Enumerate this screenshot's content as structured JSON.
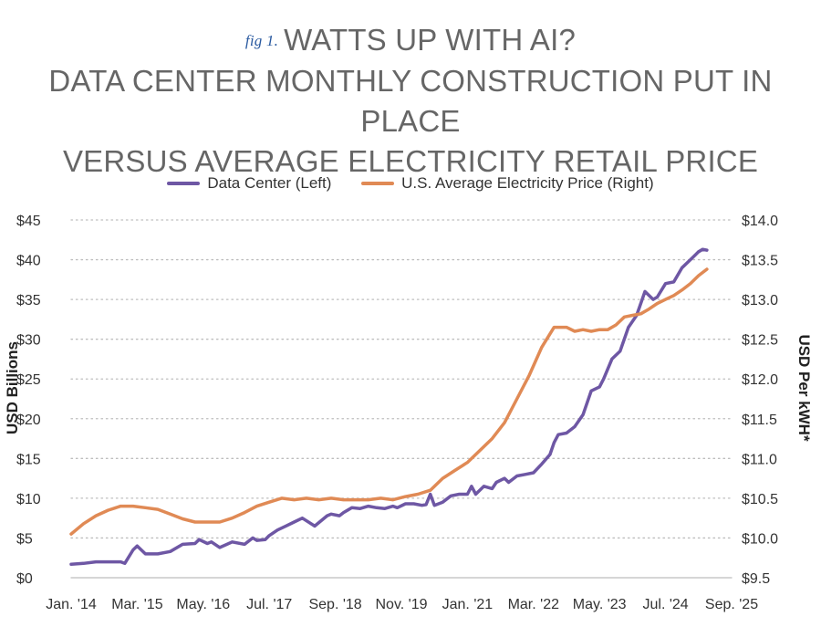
{
  "header": {
    "fig_label": "fig 1.",
    "title_line1": "WATTS UP WITH AI?",
    "title_line2": "DATA CENTER MONTHLY CONSTRUCTION PUT IN PLACE",
    "title_line3": "VERSUS AVERAGE ELECTRICITY RETAIL PRICE"
  },
  "chart_data": {
    "type": "line",
    "legend_position": "top-center",
    "grid": true,
    "xlabel": "",
    "ylabel": "USD Billions",
    "y2label": "USD Per kWH*",
    "ylim": [
      0,
      45
    ],
    "y2lim": [
      9.5,
      14.0
    ],
    "yticks": [
      "$0",
      "$5",
      "$10",
      "$15",
      "$20",
      "$25",
      "$30",
      "$35",
      "$40",
      "$45"
    ],
    "y2ticks": [
      "$9.5",
      "$10.0",
      "$10.5",
      "$11.0",
      "$11.5",
      "$12.0",
      "$12.5",
      "$13.0",
      "$13.5",
      "$14.0"
    ],
    "xticks": [
      "Jan. '14",
      "Mar. '15",
      "May. '16",
      "Jul. '17",
      "Sep. '18",
      "Nov. '19",
      "Jan. '21",
      "Mar. '22",
      "May. '23",
      "Jul. '24",
      "Sep. '25"
    ],
    "x_start": "Jan. '14",
    "x_end": "Sep. '25",
    "series": [
      {
        "name": "Data Center (Left)",
        "axis": "left",
        "color": "#6e57a4",
        "x": [
          0,
          3,
          6,
          9,
          12,
          13,
          15,
          16,
          18,
          21,
          24,
          27,
          30,
          31,
          33,
          34,
          36,
          39,
          42,
          44,
          45,
          47,
          48,
          50,
          52,
          54,
          56,
          59,
          62,
          63,
          65,
          66,
          68,
          70,
          72,
          74,
          76,
          78,
          79,
          81,
          83,
          85,
          86,
          87,
          88,
          90,
          92,
          94,
          96,
          97,
          98,
          100,
          102,
          103,
          105,
          106,
          108,
          110,
          112,
          114,
          116,
          117,
          118,
          120,
          122,
          124,
          126,
          128,
          129,
          131,
          133,
          135,
          137,
          139,
          141,
          142,
          144,
          146,
          148,
          150,
          152,
          153,
          154,
          156,
          158,
          160
        ],
        "values": [
          1.7,
          1.8,
          2.0,
          2.0,
          2.0,
          1.8,
          3.5,
          4.0,
          3.0,
          3.0,
          3.3,
          4.2,
          4.3,
          4.8,
          4.3,
          4.5,
          3.8,
          4.5,
          4.2,
          5.0,
          4.7,
          4.8,
          5.3,
          6.0,
          6.5,
          7.0,
          7.5,
          6.5,
          7.8,
          8.0,
          7.8,
          8.2,
          8.8,
          8.7,
          9.0,
          8.8,
          8.7,
          9.0,
          8.8,
          9.3,
          9.3,
          9.1,
          9.2,
          10.5,
          9.1,
          9.5,
          10.3,
          10.5,
          10.5,
          11.5,
          10.5,
          11.5,
          11.2,
          12.0,
          12.5,
          12.0,
          12.8,
          13.0,
          13.2,
          14.3,
          15.5,
          17.0,
          18.0,
          18.2,
          19.0,
          20.5,
          23.5,
          24.0,
          25.0,
          27.5,
          28.5,
          31.5,
          33.0,
          36.0,
          35.0,
          35.3,
          37.0,
          37.2,
          39.0,
          40.0,
          41.0,
          41.3,
          41.2,
          null,
          null,
          null
        ]
      },
      {
        "name": "U.S. Average Electricity Price (Right)",
        "axis": "right",
        "color": "#e08a55",
        "x": [
          0,
          3,
          6,
          9,
          12,
          15,
          18,
          21,
          24,
          27,
          30,
          33,
          36,
          39,
          42,
          45,
          48,
          51,
          54,
          57,
          60,
          63,
          66,
          69,
          72,
          75,
          78,
          81,
          84,
          87,
          90,
          93,
          96,
          99,
          102,
          105,
          108,
          111,
          114,
          117,
          120,
          122,
          124,
          126,
          128,
          130,
          132,
          134,
          136,
          138,
          140,
          142,
          144,
          146,
          148,
          150,
          152,
          154,
          156,
          158,
          160
        ],
        "values": [
          10.05,
          10.18,
          10.28,
          10.35,
          10.4,
          10.4,
          10.38,
          10.36,
          10.3,
          10.24,
          10.2,
          10.2,
          10.2,
          10.25,
          10.32,
          10.4,
          10.45,
          10.5,
          10.48,
          10.5,
          10.48,
          10.5,
          10.48,
          10.48,
          10.48,
          10.5,
          10.48,
          10.52,
          10.55,
          10.6,
          10.75,
          10.85,
          10.95,
          11.1,
          11.25,
          11.45,
          11.75,
          12.05,
          12.4,
          12.65,
          12.65,
          12.6,
          12.62,
          12.6,
          12.62,
          12.62,
          12.68,
          12.78,
          12.8,
          12.82,
          12.88,
          12.95,
          13.0,
          13.05,
          13.12,
          13.2,
          13.3,
          13.38,
          null,
          null,
          null
        ]
      }
    ]
  }
}
